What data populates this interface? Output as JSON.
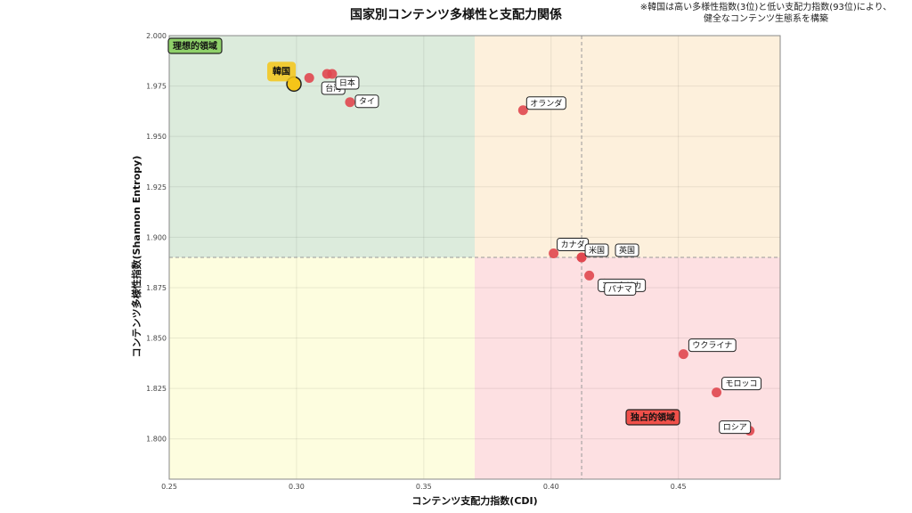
{
  "chart_data": {
    "type": "scatter",
    "title": "国家別コンテンツ多様性と支配力関係",
    "note_lines": [
      "※韓国は高い多様性指数(3位)と低い支配力指数(93位)により、",
      "健全なコンテンツ生態系を構築"
    ],
    "xlabel": "コンテンツ支配力指数(CDI)",
    "ylabel": "コンテンツ多様性指数(Shannon Entropy)",
    "xlim": [
      0.25,
      0.49
    ],
    "ylim": [
      1.78,
      2.0
    ],
    "xticks": [
      0.25,
      0.3,
      0.35,
      0.4,
      0.45
    ],
    "yticks": [
      1.8,
      1.825,
      1.85,
      1.875,
      1.9,
      1.925,
      1.95,
      1.975,
      2.0
    ],
    "xtick_labels": [
      "0.25",
      "0.30",
      "0.35",
      "0.40",
      "0.45"
    ],
    "ytick_labels": [
      "1.800",
      "1.825",
      "1.850",
      "1.875",
      "1.900",
      "1.925",
      "1.950",
      "1.975",
      "2.000"
    ],
    "grid": true,
    "threshold_x_split": 0.37,
    "threshold_y_split": 1.89,
    "mean_x": 0.412,
    "mean_y": 1.89,
    "zones": {
      "ideal": {
        "label": "理想的領域",
        "color": "#8fd16a"
      },
      "monopoly": {
        "label": "独占的領域",
        "color": "#f0504a"
      }
    },
    "colors": {
      "point": "#e0474f",
      "highlight": "#f5c518",
      "zone_top_left": "#dcebdc",
      "zone_top_right": "#fdf0dc",
      "zone_bottom_left": "#fdfddf",
      "zone_bottom_right": "#fde0e2"
    },
    "points": [
      {
        "name": "韓国",
        "x": 0.299,
        "y": 1.976,
        "highlight": true
      },
      {
        "name": "",
        "x": 0.305,
        "y": 1.979
      },
      {
        "name": "台湾",
        "x": 0.312,
        "y": 1.981
      },
      {
        "name": "日本",
        "x": 0.314,
        "y": 1.981
      },
      {
        "name": "タイ",
        "x": 0.321,
        "y": 1.967
      },
      {
        "name": "オランダ",
        "x": 0.389,
        "y": 1.963
      },
      {
        "name": "カナダ",
        "x": 0.401,
        "y": 1.892
      },
      {
        "name": "米国",
        "x": 0.412,
        "y": 1.89
      },
      {
        "name": "英国",
        "x": 0.412,
        "y": 1.89
      },
      {
        "name": "コスタリカ",
        "x": 0.415,
        "y": 1.881
      },
      {
        "name": "パナマ",
        "x": 0.421,
        "y": 1.877
      },
      {
        "name": "ウクライナ",
        "x": 0.452,
        "y": 1.842
      },
      {
        "name": "モロッコ",
        "x": 0.465,
        "y": 1.823
      },
      {
        "name": "ロシア",
        "x": 0.478,
        "y": 1.804
      }
    ]
  }
}
